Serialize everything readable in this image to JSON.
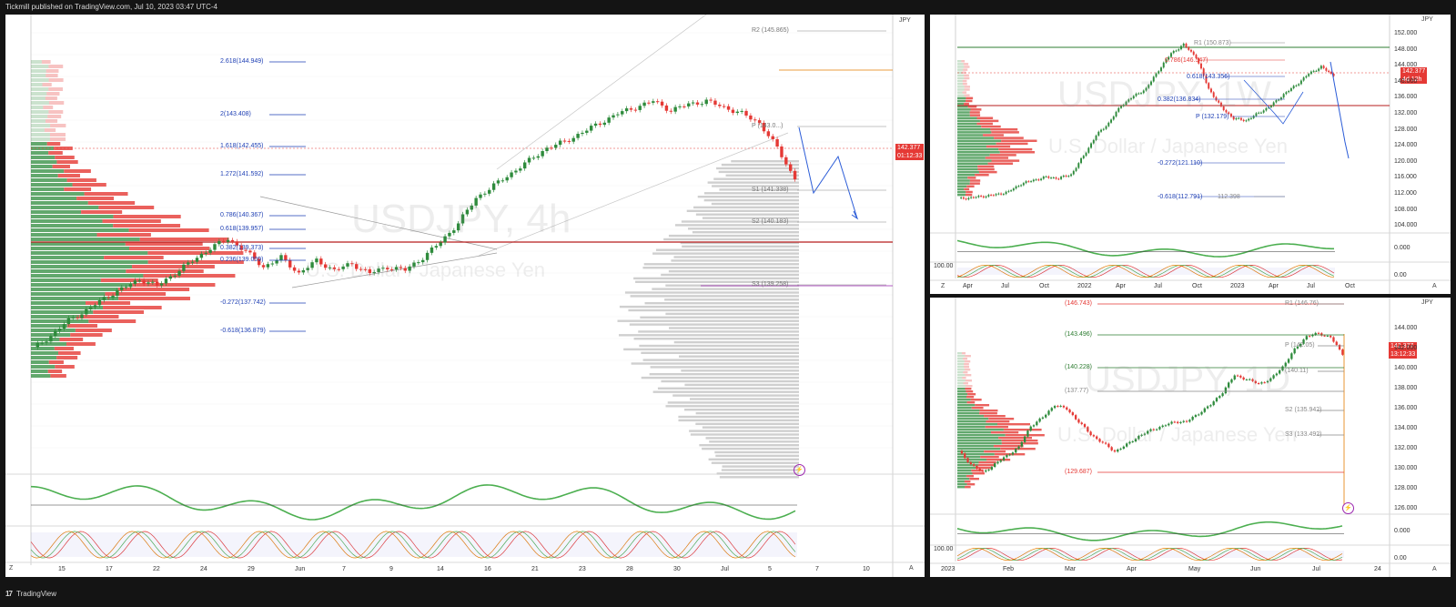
{
  "header": {
    "published": "Tickmill published on TradingView.com, Jul 10, 2023 03:47 UTC-4"
  },
  "footer": {
    "brand": "TradingView"
  },
  "colors": {
    "bull": "#2e8b3c",
    "bear": "#e53935",
    "fib": "#1e3fb4",
    "pivot": "#888888",
    "accent": "#e57c00"
  },
  "main": {
    "watermark_title": "USDJPY, 4h",
    "watermark_sub": "U.S. Dollar / Japanese Yen",
    "currency": "JPY",
    "price_tag": {
      "price": "142.377",
      "countdown": "01:12:33"
    },
    "fib_levels": [
      "2.618(144.949)",
      "2(143.408)",
      "1.618(142.455)",
      "1.272(141.592)",
      "0.786(140.367)",
      "0.618(139.957)",
      "0.382(139.373)",
      "0.236(139.009)",
      "-0.272(137.742)",
      "-0.618(136.879)"
    ],
    "pivot_labels": [
      "R2 (145.865)",
      "P (143.0...)",
      "S1 (141.338)",
      "S2 (140.183)",
      "S3 (139.258)"
    ],
    "time_axis": [
      "15",
      "17",
      "22",
      "24",
      "29",
      "Jun",
      "7",
      "9",
      "14",
      "16",
      "21",
      "23",
      "28",
      "30",
      "Jul",
      "5",
      "7",
      "10"
    ],
    "z_label": "Z",
    "a_label": "A"
  },
  "weekly": {
    "watermark_title": "USDJPY, 1W",
    "watermark_sub": "U.S. Dollar / Japanese Yen",
    "currency": "JPY",
    "price_tag": {
      "price": "142.377",
      "countdown": "4d 12h"
    },
    "fib_levels": [
      "R1 (150.873)",
      "0.786(146.547)",
      "0.618(143.356)",
      "0.382(136.834)",
      "P (132.179)",
      "-0.272(121.110)",
      "-0.618(112.791)",
      "112.398"
    ],
    "y_axis": [
      "152.000",
      "148.000",
      "144.000",
      "140.000",
      "136.000",
      "132.000",
      "128.000",
      "124.000",
      "120.000",
      "116.000",
      "112.000",
      "108.000",
      "104.000"
    ],
    "osc_axis": [
      "0.000",
      "100.00",
      "0.00"
    ],
    "time_axis": [
      "Apr",
      "Jul",
      "Oct",
      "2022",
      "Apr",
      "Jul",
      "Oct",
      "2023",
      "Apr",
      "Jul",
      "Oct"
    ],
    "z_label": "Z",
    "a_label": "A"
  },
  "daily": {
    "watermark_title": "USDJPY, 1D",
    "watermark_sub": "U.S. Dollar / Japanese Yen",
    "currency": "JPY",
    "price_tag": {
      "price": "142.377",
      "countdown": "13:12:33"
    },
    "levels": [
      "(146.743)",
      "R1 (146.76)",
      "(143.496)",
      "P (142.05)",
      "(140.228)",
      "(140.11)",
      "(137.77)",
      "S2 (135.942)",
      "S3 (133.492)",
      "(129.687)"
    ],
    "y_axis": [
      "144.000",
      "142.000",
      "140.000",
      "138.000",
      "136.000",
      "134.000",
      "132.000",
      "130.000",
      "128.000",
      "126.000"
    ],
    "osc_axis": [
      "0.000",
      "100.00",
      "0.00"
    ],
    "time_axis": [
      "2023",
      "Feb",
      "Mar",
      "Apr",
      "May",
      "Jun",
      "Jul",
      "24"
    ],
    "z_label": "Z",
    "a_label": "A"
  },
  "chart_data": [
    {
      "type": "line",
      "title": "USDJPY, 4h",
      "series": [
        {
          "name": "USDJPY 4h close",
          "values": [
            137.0,
            137.4,
            137.9,
            138.2,
            138.6,
            138.9,
            139.2,
            139.0,
            139.4,
            139.8,
            140.2,
            140.5,
            140.1,
            139.6,
            139.9,
            139.4,
            139.8,
            139.5,
            139.7,
            139.4,
            139.6,
            139.5,
            139.9,
            140.4,
            141.0,
            141.8,
            142.2,
            142.6,
            143.0,
            143.4,
            143.6,
            143.9,
            144.2,
            144.5,
            144.7,
            144.9,
            144.6,
            144.8,
            144.9,
            144.7,
            144.5,
            144.2,
            143.4,
            142.4
          ]
        }
      ],
      "ylim": [
        134.0,
        146.5
      ]
    },
    {
      "type": "line",
      "title": "USDJPY, 1W",
      "series": [
        {
          "name": "USDJPY weekly close",
          "values": [
            109.5,
            109.8,
            110.2,
            110.6,
            111.4,
            113.5,
            114.5,
            115.3,
            115.0,
            116.0,
            121.0,
            126.5,
            129.8,
            134.5,
            137.0,
            139.0,
            144.0,
            148.5,
            150.8,
            147.5,
            139.0,
            134.0,
            131.0,
            130.5,
            132.5,
            134.5,
            137.5,
            140.0,
            143.0,
            144.9,
            142.4
          ]
        }
      ],
      "ylim": [
        104,
        154
      ]
    },
    {
      "type": "line",
      "title": "USDJPY, 1D",
      "series": [
        {
          "name": "USDJPY daily close",
          "values": [
            131.0,
            129.5,
            128.5,
            129.5,
            130.5,
            131.5,
            134.0,
            135.0,
            136.5,
            136.0,
            134.5,
            133.0,
            132.0,
            131.0,
            131.8,
            132.8,
            133.5,
            134.0,
            134.5,
            134.5,
            135.5,
            136.5,
            138.0,
            140.0,
            139.5,
            139.0,
            139.5,
            141.0,
            143.0,
            144.6,
            144.9,
            144.5,
            142.4
          ]
        }
      ],
      "ylim": [
        125,
        147
      ]
    }
  ]
}
